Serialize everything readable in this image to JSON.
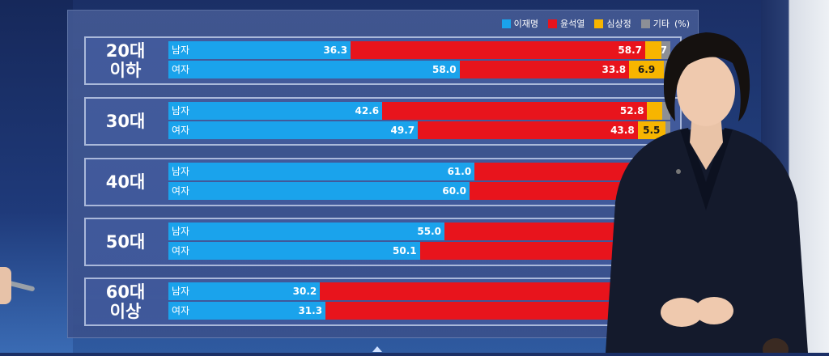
{
  "legend": {
    "items": [
      {
        "label": "이재명",
        "color": "#1aa3ec"
      },
      {
        "label": "윤석열",
        "color": "#e8141c"
      },
      {
        "label": "심상정",
        "color": "#f7b500"
      },
      {
        "label": "기타",
        "color": "#8c8f96"
      }
    ],
    "unit": "(%)"
  },
  "chart_data": {
    "type": "bar",
    "orientation": "horizontal-stacked",
    "series_names": [
      "이재명",
      "윤석열",
      "심상정",
      "기타"
    ],
    "groups": [
      {
        "label_line1": "20대",
        "label_line2": "이하",
        "rows": [
          {
            "gender": "남자",
            "values": [
              36.3,
              58.7,
              3.3,
              1.7
            ],
            "labels": [
              "36.3",
              "58.7",
              "",
              "1.7"
            ]
          },
          {
            "gender": "여자",
            "values": [
              58.0,
              33.8,
              6.9,
              1.3
            ],
            "labels": [
              "58.0",
              "33.8",
              "6.9",
              ""
            ]
          }
        ]
      },
      {
        "label_line1": "30대",
        "label_line2": "",
        "rows": [
          {
            "gender": "남자",
            "values": [
              42.6,
              52.8,
              3.0,
              1.6
            ],
            "labels": [
              "42.6",
              "52.8",
              "",
              ""
            ]
          },
          {
            "gender": "여자",
            "values": [
              49.7,
              43.8,
              5.5,
              1.0
            ],
            "labels": [
              "49.7",
              "43.8",
              "5.5",
              ""
            ]
          }
        ]
      },
      {
        "label_line1": "40대",
        "label_line2": "",
        "rows": [
          {
            "gender": "남자",
            "values": [
              61.0,
              36.0,
              2.0,
              1.0
            ],
            "labels": [
              "61.0",
              "",
              "",
              ""
            ]
          },
          {
            "gender": "여자",
            "values": [
              60.0,
              37.0,
              2.0,
              1.0
            ],
            "labels": [
              "60.0",
              "",
              "",
              ""
            ]
          }
        ]
      },
      {
        "label_line1": "50대",
        "label_line2": "",
        "rows": [
          {
            "gender": "남자",
            "values": [
              55.0,
              42.8,
              1.2,
              1.0
            ],
            "labels": [
              "55.0",
              "",
              "",
              ""
            ]
          },
          {
            "gender": "여자",
            "values": [
              50.1,
              47.8,
              1.3,
              0.8
            ],
            "labels": [
              "50.1",
              "",
              "",
              ""
            ]
          }
        ]
      },
      {
        "label_line1": "60대",
        "label_line2": "이상",
        "rows": [
          {
            "gender": "남자",
            "values": [
              30.2,
              66.5,
              1.8,
              1.5
            ],
            "labels": [
              "30.2",
              "",
              "",
              ""
            ]
          },
          {
            "gender": "여자",
            "values": [
              31.3,
              65.8,
              1.5,
              1.4
            ],
            "labels": [
              "31.3",
              "",
              "",
              ""
            ]
          }
        ]
      }
    ]
  }
}
